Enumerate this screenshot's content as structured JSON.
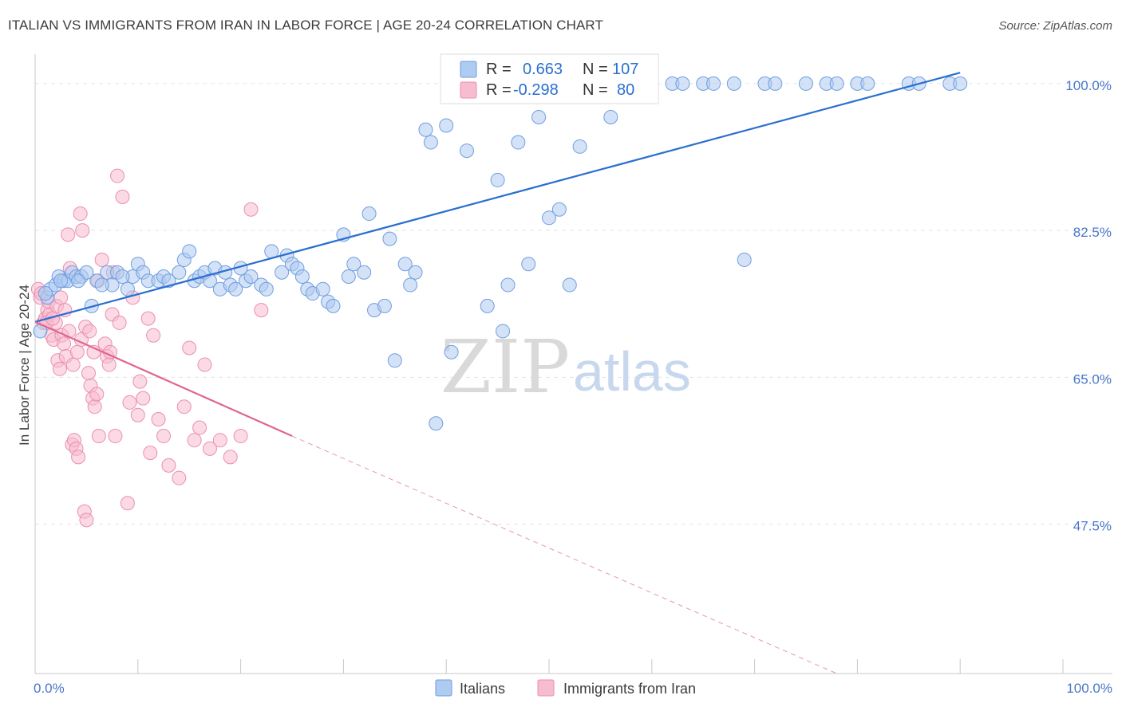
{
  "title": "ITALIAN VS IMMIGRANTS FROM IRAN IN LABOR FORCE | AGE 20-24 CORRELATION CHART",
  "source": "Source: ZipAtlas.com",
  "watermark": {
    "zip": "ZIP",
    "atlas": "atlas"
  },
  "legend": {
    "r_label": "R =",
    "n_label": "N =",
    "rows": [
      {
        "r": "0.663",
        "n": "107"
      },
      {
        "r": "-0.298",
        "n": "80"
      }
    ]
  },
  "bottom_legend": [
    "Italians",
    "Immigrants from Iran"
  ],
  "colors": {
    "blue_fill": "#aecbf1",
    "blue_stroke": "#6f9ee0",
    "blue_line": "#2a6fcf",
    "pink_fill": "#f7bcd0",
    "pink_stroke": "#ea8fae",
    "pink_line": "#e0668f",
    "tick_text": "#4a77c9",
    "grid": "#e3e3e3"
  },
  "chart_data": {
    "type": "scatter",
    "title": "ITALIAN VS IMMIGRANTS FROM IRAN IN LABOR FORCE | AGE 20-24 CORRELATION CHART",
    "xlabel": "",
    "ylabel": "In Labor Force | Age 20-24",
    "xlim": [
      0,
      100
    ],
    "ylim": [
      29.7,
      103.5
    ],
    "x_tick_labels": [
      "0.0%",
      "100.0%"
    ],
    "y_ticks": [
      47.5,
      65.0,
      82.5,
      100.0
    ],
    "y_tick_labels": [
      "47.5%",
      "65.0%",
      "82.5%",
      "100.0%"
    ],
    "grid": true,
    "legend_position": "top-center",
    "series": [
      {
        "name": "Italians",
        "r": 0.663,
        "n": 107,
        "trend": {
          "x": [
            0,
            90
          ],
          "y": [
            71.6,
            101.3
          ]
        },
        "x": [
          0.5,
          1.2,
          1.5,
          2.0,
          2.3,
          2.8,
          3.2,
          3.6,
          4.0,
          4.5,
          5.0,
          5.5,
          6.0,
          7.0,
          7.5,
          8.0,
          9.0,
          9.5,
          10.0,
          10.5,
          11.0,
          12.0,
          12.5,
          13.0,
          14.0,
          14.5,
          15.0,
          15.5,
          16.0,
          16.5,
          17.0,
          17.5,
          18.0,
          18.5,
          19.0,
          19.5,
          20.0,
          20.5,
          21.0,
          22.0,
          22.5,
          23.0,
          24.0,
          24.5,
          25.0,
          25.5,
          26.0,
          26.5,
          27.0,
          28.0,
          28.5,
          29.0,
          30.0,
          30.5,
          31.0,
          32.0,
          32.5,
          33.0,
          34.0,
          34.5,
          35.0,
          36.0,
          36.5,
          37.0,
          38.0,
          38.5,
          39.0,
          40.0,
          40.5,
          42.0,
          44.0,
          45.0,
          45.5,
          46.0,
          47.0,
          48.0,
          49.0,
          50.0,
          51.0,
          52.0,
          53.0,
          56.0,
          57.0,
          58.0,
          59.0,
          62.0,
          63.0,
          65.0,
          66.0,
          68.0,
          69.0,
          71.0,
          72.0,
          75.0,
          77.0,
          78.0,
          80.0,
          81.0,
          85.0,
          86.0,
          89.0,
          90.0,
          1.0,
          2.5,
          4.2,
          6.5,
          8.5
        ],
        "y": [
          70.5,
          74.5,
          75.5,
          76.0,
          77.0,
          76.5,
          76.5,
          77.5,
          77.0,
          77.0,
          77.5,
          73.5,
          76.5,
          77.5,
          76.0,
          77.5,
          75.5,
          77.0,
          78.5,
          77.5,
          76.5,
          76.5,
          77.0,
          76.5,
          77.5,
          79.0,
          80.0,
          76.5,
          77.0,
          77.5,
          76.5,
          78.0,
          75.5,
          77.5,
          76.0,
          75.5,
          78.0,
          76.5,
          77.0,
          76.0,
          75.5,
          80.0,
          77.5,
          79.5,
          78.5,
          78.0,
          77.0,
          75.5,
          75.0,
          75.5,
          74.0,
          73.5,
          82.0,
          77.0,
          78.5,
          77.5,
          84.5,
          73.0,
          73.5,
          81.5,
          67.0,
          78.5,
          76.0,
          77.5,
          94.5,
          93.0,
          59.5,
          95.0,
          68.0,
          92.0,
          73.5,
          88.5,
          70.5,
          76.0,
          93.0,
          78.5,
          96.0,
          84.0,
          85.0,
          76.0,
          92.5,
          96.0,
          100.0,
          100.0,
          100.0,
          100.0,
          100.0,
          100.0,
          100.0,
          100.0,
          79.0,
          100.0,
          100.0,
          100.0,
          100.0,
          100.0,
          100.0,
          100.0,
          100.0,
          100.0,
          100.0,
          100.0,
          75.0,
          76.5,
          76.5,
          76.0,
          77.0
        ]
      },
      {
        "name": "Immigrants from Iran",
        "r": -0.298,
        "n": 80,
        "trend": {
          "x": [
            0,
            25
          ],
          "y": [
            71.6,
            58.0
          ]
        },
        "trend_dashed": {
          "x": [
            25,
            78
          ],
          "y": [
            58.0,
            29.7
          ]
        },
        "x": [
          0.3,
          0.5,
          0.6,
          0.8,
          1.0,
          1.2,
          1.4,
          1.6,
          1.8,
          2.0,
          2.2,
          2.4,
          2.6,
          2.8,
          3.0,
          3.2,
          3.4,
          3.6,
          3.8,
          4.0,
          4.2,
          4.4,
          4.6,
          4.8,
          5.0,
          5.2,
          5.4,
          5.6,
          5.8,
          6.0,
          6.2,
          6.5,
          6.8,
          7.0,
          7.2,
          7.5,
          7.8,
          8.0,
          8.5,
          9.0,
          9.5,
          10.0,
          10.5,
          11.0,
          11.5,
          12.0,
          12.5,
          13.0,
          14.0,
          14.5,
          15.0,
          15.5,
          16.0,
          16.5,
          17.0,
          18.0,
          19.0,
          20.0,
          21.0,
          22.0,
          1.1,
          1.3,
          1.7,
          2.1,
          2.5,
          2.9,
          3.3,
          3.7,
          4.1,
          4.5,
          4.9,
          5.3,
          5.7,
          6.1,
          7.3,
          7.6,
          8.2,
          9.2,
          10.2,
          11.2
        ],
        "y": [
          75.5,
          74.5,
          75.0,
          71.5,
          72.0,
          73.0,
          72.5,
          70.0,
          69.5,
          71.5,
          67.0,
          66.0,
          70.0,
          69.0,
          67.5,
          82.0,
          78.0,
          57.0,
          57.5,
          56.5,
          55.5,
          84.5,
          82.5,
          49.0,
          48.0,
          65.5,
          64.0,
          62.5,
          61.5,
          63.0,
          58.0,
          79.0,
          69.0,
          67.5,
          66.5,
          72.5,
          58.0,
          89.0,
          86.5,
          50.0,
          74.5,
          60.5,
          62.5,
          72.0,
          70.0,
          60.0,
          58.0,
          54.5,
          53.0,
          61.5,
          68.5,
          57.5,
          59.0,
          66.5,
          56.5,
          57.5,
          55.5,
          58.0,
          85.0,
          73.0,
          71.5,
          74.0,
          72.0,
          73.5,
          74.5,
          73.0,
          70.5,
          66.5,
          68.0,
          69.5,
          71.0,
          70.5,
          68.0,
          76.5,
          68.0,
          77.5,
          71.5,
          62.0,
          64.5,
          56.0
        ]
      }
    ]
  }
}
